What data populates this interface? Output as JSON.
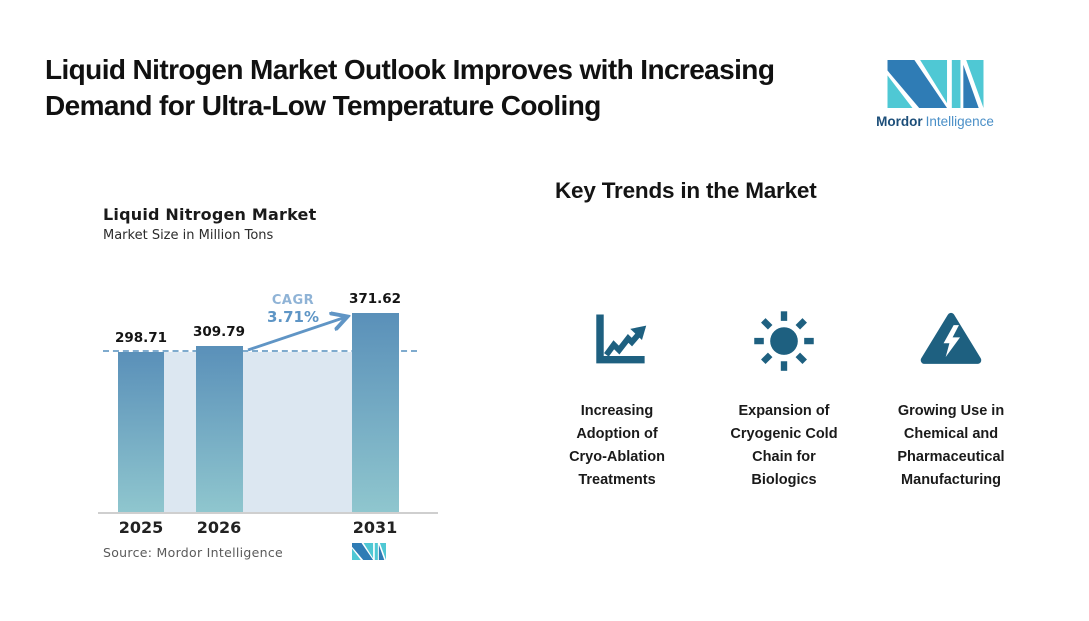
{
  "header": {
    "title": "Liquid Nitrogen Market Outlook Improves with Increasing Demand for Ultra-Low Temperature Cooling",
    "title_lines": [
      "Liquid Nitrogen Market Outlook Improves with Increasing",
      "Demand for Ultra-Low Temperature Cooling"
    ],
    "brand": {
      "word1": "Mordor",
      "word2": "Intelligence"
    }
  },
  "chart": {
    "title": "Liquid Nitrogen Market",
    "subtitle": "Market Size in Million Tons",
    "cagr_label": "CAGR",
    "cagr_value": "3.71%",
    "source_prefix": "Source:",
    "source_name": "Mordor Intelligence"
  },
  "chart_data": {
    "type": "bar",
    "title": "Liquid Nitrogen Market",
    "subtitle": "Market Size in Million Tons",
    "unit": "Million Tons",
    "categories": [
      "2025",
      "2026",
      "2031"
    ],
    "values": [
      298.71,
      309.79,
      371.62
    ],
    "annotation": "CAGR 3.71%",
    "reference_line": {
      "value": 298.71,
      "style": "dashed"
    },
    "ylim": [
      0,
      560
    ],
    "grid": false,
    "legend": false,
    "colors": {
      "bar_top": "#5a90b9",
      "bar_bottom": "#8fc6ce",
      "plot_band": "#dce7f1",
      "dashed_line": "#7fabce",
      "arrow": "#6095c5"
    }
  },
  "trends": {
    "heading": "Key Trends in the Market",
    "items": [
      {
        "icon": "trend-up-chart-icon",
        "label": "Increasing Adoption of Cryo-Ablation Treatments",
        "lines": [
          "Increasing",
          "Adoption of",
          "Cryo-Ablation",
          "Treatments"
        ]
      },
      {
        "icon": "sun-icon",
        "label": "Expansion of Cryogenic Cold Chain for Biologics",
        "lines": [
          "Expansion of",
          "Cryogenic Cold",
          "Chain for",
          "Biologics"
        ]
      },
      {
        "icon": "warning-lightning-icon",
        "label": "Growing Use in Chemical and Pharmaceutical Manufacturing",
        "lines": [
          "Growing Use in",
          "Chemical and",
          "Pharmaceutical",
          "Manufacturing"
        ]
      }
    ]
  },
  "colors": {
    "icon_blue": "#1e6080",
    "logo_blue": "#2f7cb5",
    "logo_teal": "#4fc8d4",
    "text_dark": "#111111"
  }
}
